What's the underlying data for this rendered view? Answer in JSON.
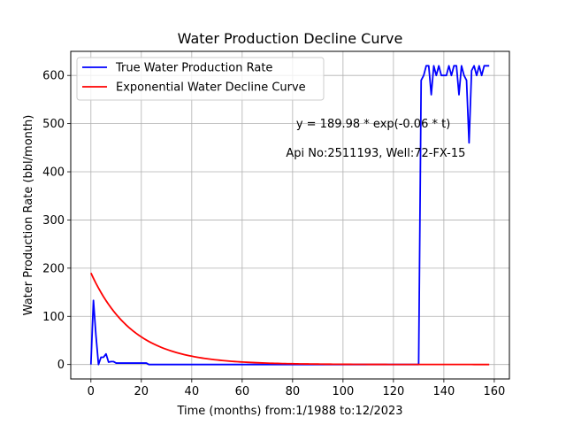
{
  "chart_data": {
    "type": "line",
    "title": "Water Production Decline Curve",
    "xlabel": "Time (months) from:1/1988 to:12/2023",
    "ylabel": "Water Production Rate (bbl/month)",
    "xlim": [
      -8,
      166
    ],
    "ylim": [
      -30,
      650
    ],
    "xticks": [
      0,
      20,
      40,
      60,
      80,
      100,
      120,
      140,
      160
    ],
    "yticks": [
      0,
      100,
      200,
      300,
      400,
      500,
      600
    ],
    "grid": true,
    "legend_position": "top-left",
    "annotations": [
      {
        "text": "y = 189.98 * exp(-0.06 * t)",
        "x": 112,
        "y": 500
      },
      {
        "text": "Api No:2511193, Well:72-FX-15",
        "x": 113,
        "y": 440
      }
    ],
    "series": [
      {
        "name": "True Water Production Rate",
        "color": "#0000ff",
        "x": [
          0,
          1,
          2,
          3,
          4,
          5,
          6,
          7,
          8,
          9,
          10,
          11,
          12,
          13,
          14,
          15,
          16,
          17,
          18,
          19,
          20,
          21,
          22,
          23,
          24,
          30,
          40,
          50,
          60,
          70,
          80,
          90,
          100,
          110,
          120,
          130,
          131,
          132,
          133,
          134,
          135,
          136,
          137,
          138,
          139,
          140,
          141,
          142,
          143,
          144,
          145,
          146,
          147,
          148,
          149,
          150,
          151,
          152,
          153,
          154,
          155,
          156,
          157,
          158
        ],
        "y": [
          0,
          133,
          60,
          0,
          15,
          15,
          22,
          5,
          6,
          6,
          3,
          3,
          3,
          3,
          3,
          3,
          3,
          3,
          3,
          3,
          3,
          3,
          3,
          0,
          0,
          0,
          0,
          0,
          0,
          0,
          0,
          0,
          0,
          0,
          0,
          0,
          590,
          600,
          620,
          620,
          560,
          620,
          600,
          620,
          600,
          600,
          600,
          620,
          600,
          620,
          620,
          560,
          620,
          600,
          590,
          460,
          610,
          620,
          600,
          620,
          600,
          620,
          620,
          620
        ]
      },
      {
        "name": "Exponential Water Decline Curve",
        "color": "#ff0000",
        "a": 189.98,
        "b": -0.06,
        "x_range": [
          0,
          158
        ]
      }
    ]
  }
}
